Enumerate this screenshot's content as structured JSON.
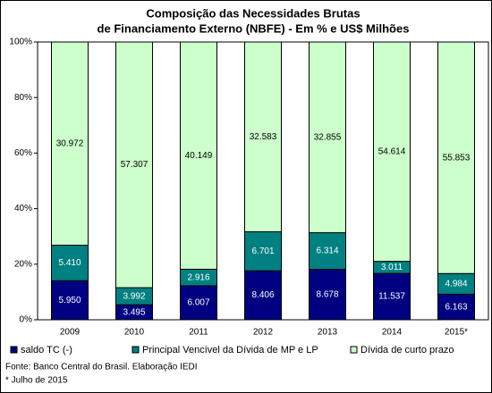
{
  "chart_data": {
    "type": "bar",
    "stacking": "percent",
    "title": [
      "Composição das Necessidades Brutas",
      "de Financiamento Externo (NBFE) - Em % e US$ Milhões"
    ],
    "categories": [
      "2009",
      "2010",
      "2011",
      "2012",
      "2013",
      "2014",
      "2015*"
    ],
    "series": [
      {
        "name": "saldo  TC (-)",
        "color": "#000080",
        "label_color": "#ffffff",
        "values": [
          5950,
          3495,
          6007,
          8406,
          8678,
          11537,
          6163
        ],
        "value_labels": [
          "5.950",
          "3.495",
          "6.007",
          "8.406",
          "8.678",
          "11.537",
          "6.163"
        ]
      },
      {
        "name": "Principal Vencível da Dívida de MP e LP",
        "color": "#008080",
        "label_color": "#ffffff",
        "values": [
          5410,
          3992,
          2916,
          6701,
          6314,
          3011,
          4984
        ],
        "value_labels": [
          "5.410",
          "3.992",
          "2.916",
          "6.701",
          "6.314",
          "3.011",
          "4.984"
        ]
      },
      {
        "name": "Dívida de curto prazo",
        "color": "#ccffcc",
        "label_color": "#000000",
        "values": [
          30972,
          57307,
          40149,
          32583,
          32855,
          54614,
          55853
        ],
        "value_labels": [
          "30.972",
          "57.307",
          "40.149",
          "32.583",
          "32.855",
          "54.614",
          "55.853"
        ]
      }
    ],
    "ylim": [
      0,
      100
    ],
    "yticks": [
      {
        "value": 0,
        "label": "0%"
      },
      {
        "value": 20,
        "label": "20%"
      },
      {
        "value": 40,
        "label": "40%"
      },
      {
        "value": 60,
        "label": "60%"
      },
      {
        "value": 80,
        "label": "80%"
      },
      {
        "value": 100,
        "label": "100%"
      }
    ],
    "grid": false,
    "legend": "bottom",
    "source": "Fonte: Banco Central do Brasil. Elaboração IEDI",
    "note": "* Julho de 2015"
  }
}
